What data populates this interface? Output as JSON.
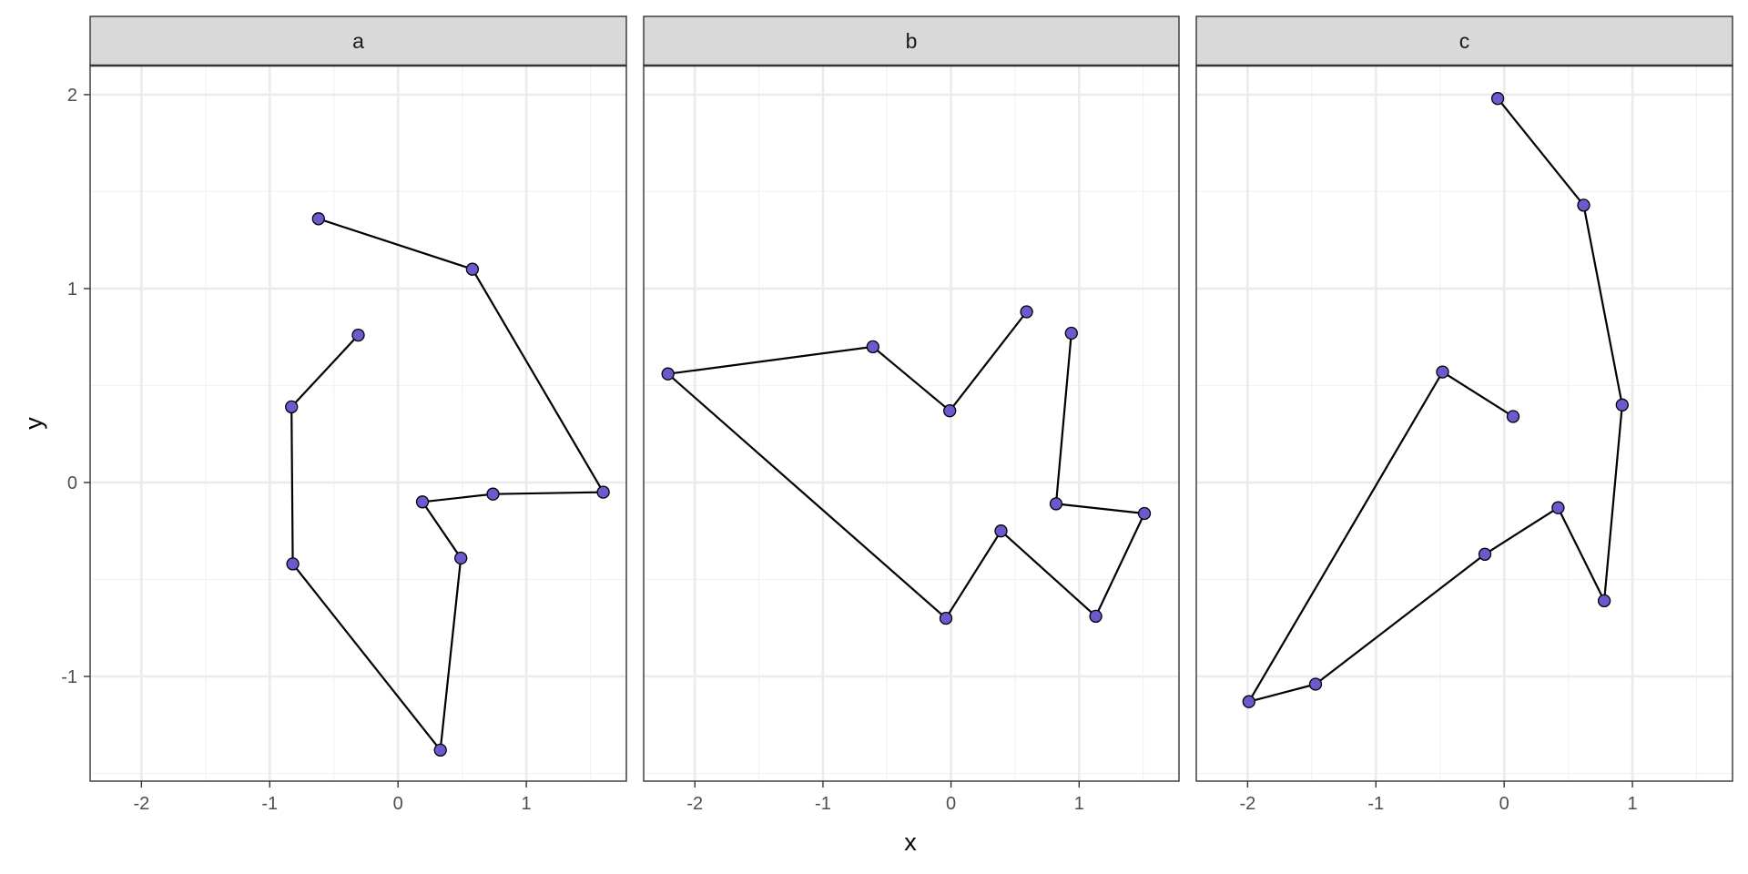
{
  "chart_data": {
    "type": "line",
    "title": "",
    "xlabel": "x",
    "ylabel": "y",
    "xlim": [
      -2.4,
      1.78
    ],
    "ylim": [
      -1.54,
      2.15
    ],
    "x_ticks": [
      -2,
      -1,
      0,
      1
    ],
    "x_tick_labels": [
      "-2",
      "-1",
      "0",
      "1"
    ],
    "y_ticks": [
      -1,
      0,
      1,
      2
    ],
    "y_tick_labels": [
      "-1",
      "0",
      "1",
      "2"
    ],
    "grid": true,
    "theme": "bw",
    "point_color": "#6a5acd",
    "line_color": "#000000",
    "panels": [
      {
        "label": "a",
        "points": [
          {
            "x": -0.31,
            "y": 0.76
          },
          {
            "x": -0.83,
            "y": 0.39
          },
          {
            "x": -0.82,
            "y": -0.42
          },
          {
            "x": 0.33,
            "y": -1.38
          },
          {
            "x": 0.49,
            "y": -0.39
          },
          {
            "x": 0.19,
            "y": -0.1
          },
          {
            "x": 0.74,
            "y": -0.06
          },
          {
            "x": 1.6,
            "y": -0.05
          },
          {
            "x": 0.58,
            "y": 1.1
          },
          {
            "x": -0.62,
            "y": 1.36
          }
        ]
      },
      {
        "label": "b",
        "points": [
          {
            "x": 0.59,
            "y": 0.88
          },
          {
            "x": -0.01,
            "y": 0.37
          },
          {
            "x": -0.61,
            "y": 0.7
          },
          {
            "x": -2.21,
            "y": 0.56
          },
          {
            "x": -0.04,
            "y": -0.7
          },
          {
            "x": 0.39,
            "y": -0.25
          },
          {
            "x": 1.13,
            "y": -0.69
          },
          {
            "x": 1.51,
            "y": -0.16
          },
          {
            "x": 0.82,
            "y": -0.11
          },
          {
            "x": 0.94,
            "y": 0.77
          }
        ]
      },
      {
        "label": "c",
        "points": [
          {
            "x": 0.07,
            "y": 0.34
          },
          {
            "x": -0.48,
            "y": 0.57
          },
          {
            "x": -1.99,
            "y": -1.13
          },
          {
            "x": -1.47,
            "y": -1.04
          },
          {
            "x": -0.15,
            "y": -0.37
          },
          {
            "x": 0.42,
            "y": -0.13
          },
          {
            "x": 0.78,
            "y": -0.61
          },
          {
            "x": 0.92,
            "y": 0.4
          },
          {
            "x": 0.62,
            "y": 1.43
          },
          {
            "x": -0.05,
            "y": 1.98
          }
        ]
      }
    ]
  }
}
